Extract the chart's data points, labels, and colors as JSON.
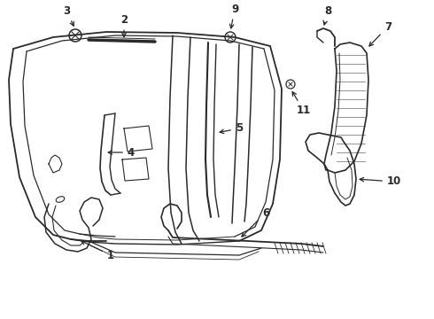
{
  "bg_color": "#ffffff",
  "line_color": "#2a2a2a",
  "figsize": [
    4.9,
    3.6
  ],
  "dpi": 100
}
